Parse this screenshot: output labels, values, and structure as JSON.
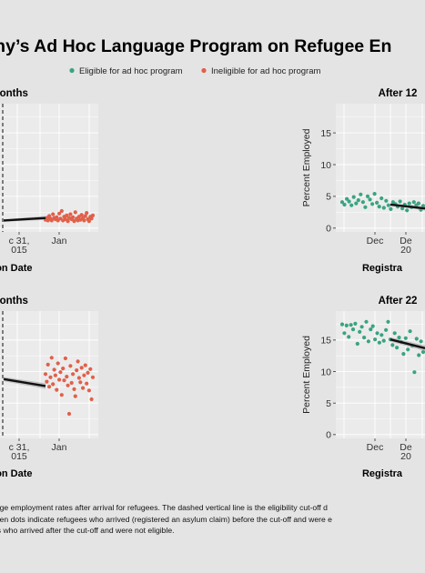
{
  "colors": {
    "background": "#e4e4e4",
    "panel": "#ebebeb",
    "grid": "#ffffff",
    "eligible": "#3aa383",
    "ineligible": "#e0604a",
    "trend": "#111111",
    "ribbon": "#9c9c9c",
    "cutoff": "#333333"
  },
  "title": "many’s Ad Hoc Language Program on Refugee En",
  "legend": {
    "position": "top-center",
    "items": [
      {
        "label": "Eligible for ad hoc program",
        "color": "#3aa383"
      },
      {
        "label": "Ineligible for ad hoc program",
        "color": "#e0604a"
      }
    ]
  },
  "caption": {
    "lines": [
      "rage employment rates after arrival for refugees. The dashed vertical line is the eligibility cut-off d",
      "reen dots indicate refugees who arrived (registered an asylum claim) before the cut-off and were e",
      "es who arrived after the cut-off and were not eligible."
    ]
  },
  "chart_data": [
    {
      "type": "scatter",
      "title": "Months",
      "xlabel": "tion Date",
      "ylabel": "",
      "grid": true,
      "cutoff_line": true,
      "x_ticks": [
        "c 31,\n015",
        "Jan"
      ],
      "trend": {
        "y_start": 1.2,
        "y_end": 1.6
      },
      "ineligible": [
        1.3,
        1.6,
        1.2,
        1.9,
        1.5,
        1.2,
        2.2,
        1.6,
        1.4,
        1.7,
        1.2,
        2.3,
        1.5,
        2.7,
        1.2,
        1.8,
        1.4,
        2.0,
        1.1,
        1.6,
        2.2,
        1.4,
        1.7,
        1.1,
        2.5,
        1.5,
        1.2,
        1.8,
        1.3,
        2.1,
        1.6,
        1.2,
        1.9,
        2.4,
        1.4,
        1.1,
        1.8,
        1.5,
        2.0
      ]
    },
    {
      "type": "scatter",
      "title": "After 12",
      "xlabel": "Registra",
      "ylabel": "Percent Employed",
      "grid": true,
      "cutoff_line": false,
      "ylim": [
        -0.6,
        19.6
      ],
      "y_ticks": [
        0,
        5,
        10,
        15
      ],
      "x_ticks": [
        "Dec",
        "De\n20"
      ],
      "trend": {
        "y_start": 3.7,
        "y_end": 3.1
      },
      "eligible": [
        4.1,
        3.7,
        4.6,
        4.2,
        3.6,
        4.9,
        3.9,
        4.4,
        5.3,
        4.1,
        3.3,
        5.0,
        4.5,
        3.8,
        5.4,
        4.0,
        3.4,
        4.7,
        3.2,
        4.3,
        3.6,
        3.0,
        4.1,
        3.8,
        3.4,
        4.2,
        3.1,
        3.7,
        2.8,
        3.9,
        3.3,
        4.1,
        3.6,
        3.9,
        2.9,
        3.5
      ]
    },
    {
      "type": "scatter",
      "title": "Months",
      "xlabel": "tion Date",
      "ylabel": "",
      "grid": true,
      "cutoff_line": true,
      "x_ticks": [
        "c 31,\n015",
        "Jan"
      ],
      "trend": {
        "y_start": 8.8,
        "y_end": 7.7
      },
      "ineligible": [
        9.6,
        8.4,
        11.1,
        7.6,
        9.1,
        12.2,
        8.0,
        10.3,
        9.4,
        7.1,
        11.3,
        8.7,
        9.9,
        6.3,
        10.5,
        8.6,
        12.1,
        9.2,
        7.8,
        3.3,
        10.9,
        8.2,
        9.6,
        7.2,
        6.1,
        10.2,
        11.6,
        9.0,
        8.3,
        10.6,
        7.4,
        9.4,
        11.0,
        8.1,
        9.8,
        7.0,
        10.4,
        5.6,
        9.1
      ]
    },
    {
      "type": "scatter",
      "title": "After 22",
      "xlabel": "Registra",
      "ylabel": "Percent Employed",
      "grid": true,
      "cutoff_line": false,
      "ylim": [
        -0.6,
        19.6
      ],
      "y_ticks": [
        0,
        5,
        10,
        15
      ],
      "x_ticks": [
        "Dec",
        "De\n20"
      ],
      "trend": {
        "y_start": 15.1,
        "y_end": 13.7
      },
      "eligible": [
        17.5,
        16.1,
        17.3,
        15.5,
        17.4,
        16.7,
        17.6,
        14.4,
        16.3,
        17.1,
        15.4,
        17.9,
        14.8,
        16.7,
        17.2,
        15.1,
        16.1,
        14.6,
        15.8,
        14.9,
        16.6,
        17.9,
        15.1,
        14.2,
        16.1,
        13.8,
        15.4,
        14.7,
        12.8,
        15.3,
        13.5,
        16.4,
        14.1,
        9.9,
        15.2,
        12.6,
        14.8,
        13.1
      ]
    }
  ]
}
